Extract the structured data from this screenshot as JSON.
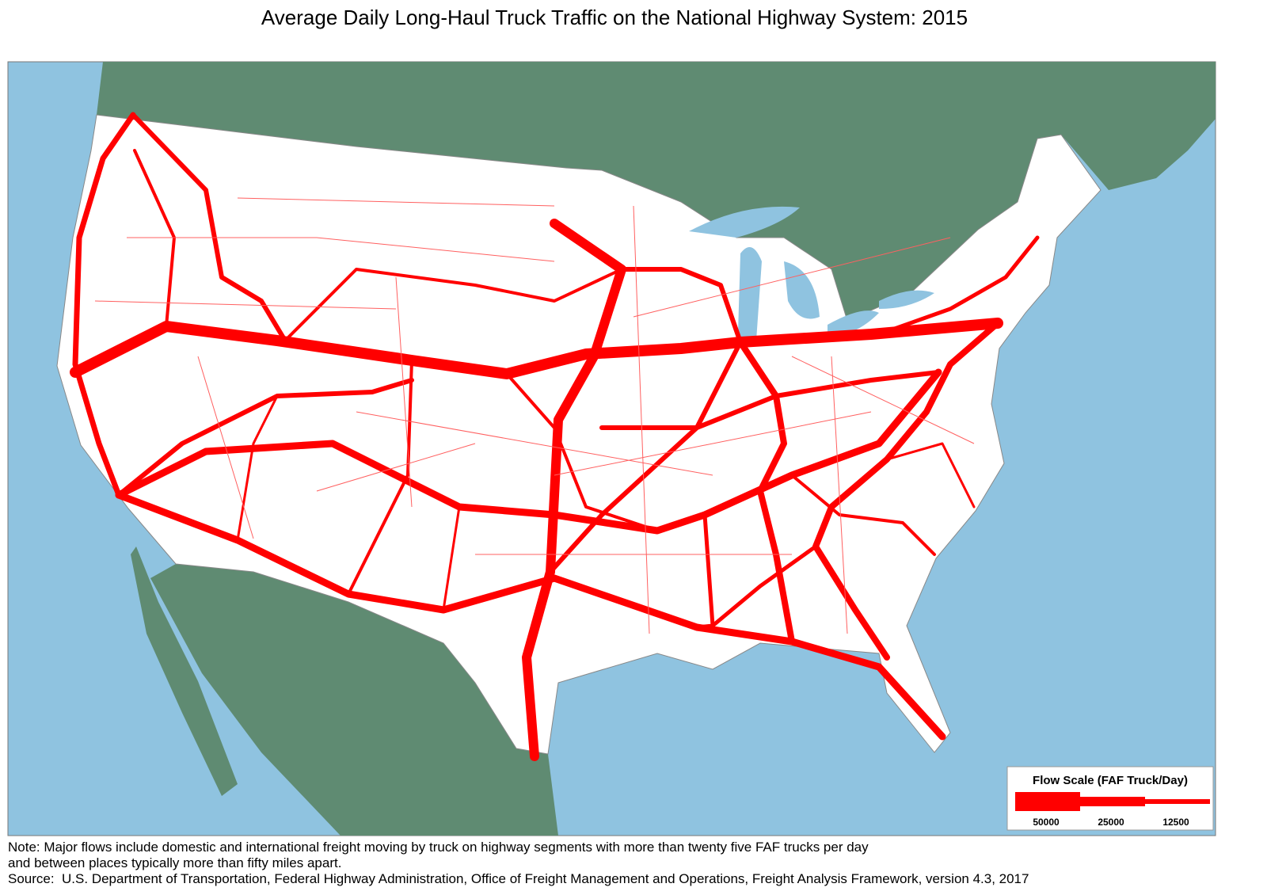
{
  "title": "Average Daily Long-Haul Truck Traffic on the National Highway System: 2015",
  "legend": {
    "title": "Flow Scale (FAF Truck/Day)",
    "items": [
      50000,
      25000,
      12500
    ]
  },
  "notes": [
    "Note: Major flows include domestic and international freight moving by truck on highway segments with more than twenty five FAF trucks per day",
    "and between places typically more than fifty miles apart."
  ],
  "source": "Source:  U.S. Department of Transportation, Federal Highway Administration, Office of Freight Management and Operations, Freight Analysis Framework, version 4.3, 2017"
}
